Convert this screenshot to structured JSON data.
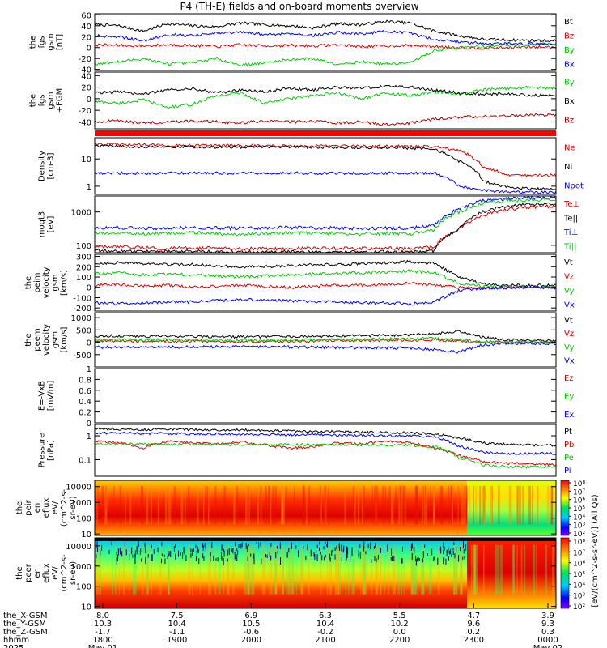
{
  "title": "P4 (TH-E) fields and on-board moments overview",
  "chart_data": [
    {
      "id": "fgs_gsm",
      "type": "line",
      "ylabel": [
        "the",
        "fgs",
        "gsm",
        "[nT]"
      ],
      "ylim": [
        -42,
        62
      ],
      "yticks": [
        60,
        40,
        20,
        0,
        -20,
        -40
      ],
      "series": [
        {
          "name": "Bt",
          "color": "#000000",
          "values": [
            42,
            40,
            30,
            44,
            40,
            38,
            45,
            42,
            40,
            36,
            44,
            42,
            48,
            45,
            30,
            22,
            15,
            14,
            13,
            12
          ]
        },
        {
          "name": "Bz",
          "color": "#dd0000",
          "values": [
            5,
            4,
            3,
            5,
            4,
            2,
            5,
            3,
            4,
            3,
            5,
            2,
            3,
            4,
            2,
            0,
            -1,
            0,
            1,
            1
          ]
        },
        {
          "name": "By",
          "color": "#00cc00",
          "values": [
            -30,
            -26,
            -20,
            -30,
            -28,
            -20,
            -32,
            -28,
            -22,
            -20,
            -30,
            -26,
            -30,
            -28,
            -5,
            0,
            2,
            5,
            6,
            7
          ]
        },
        {
          "name": "Bx",
          "color": "#0000ff",
          "values": [
            22,
            20,
            12,
            24,
            22,
            26,
            28,
            24,
            26,
            22,
            28,
            25,
            30,
            26,
            15,
            10,
            8,
            7,
            7,
            6
          ]
        }
      ]
    },
    {
      "id": "fgs_gsm_alt",
      "type": "line",
      "ylabel": [
        "the",
        "fgs",
        "gsm",
        "+FGM"
      ],
      "ylim": [
        -52,
        46
      ],
      "yticks": [
        40,
        20,
        0,
        -20,
        -40
      ],
      "series": [
        {
          "name": "By",
          "color": "#00cc00",
          "values": [
            -5,
            -8,
            -2,
            -15,
            -10,
            5,
            10,
            -8,
            0,
            5,
            10,
            0,
            10,
            5,
            12,
            8,
            15,
            18,
            20,
            18
          ]
        },
        {
          "name": "Bx",
          "color": "#000000",
          "values": [
            10,
            12,
            8,
            15,
            18,
            10,
            15,
            12,
            18,
            15,
            20,
            18,
            22,
            20,
            15,
            10,
            8,
            8,
            6,
            6
          ]
        },
        {
          "name": "Bz",
          "color": "#aa0000",
          "values": [
            -40,
            -38,
            -42,
            -40,
            -38,
            -40,
            -42,
            -38,
            -40,
            -39,
            -42,
            -40,
            -45,
            -42,
            -35,
            -32,
            -30,
            -30,
            -28,
            -28
          ]
        }
      ]
    },
    {
      "id": "density",
      "type": "line",
      "log": true,
      "ylabel": [
        "Density",
        "[cm-3]"
      ],
      "ylim": [
        0.5,
        60
      ],
      "yticks": [
        10,
        1
      ],
      "series": [
        {
          "name": "Ne",
          "color": "#dd0000",
          "values": [
            35,
            34,
            33,
            32,
            32,
            31,
            31,
            30,
            30,
            30,
            30,
            29,
            29,
            29,
            28,
            20,
            5,
            2.5,
            2.5,
            2.5
          ]
        },
        {
          "name": "Ni",
          "color": "#000000",
          "values": [
            30,
            29,
            28,
            28,
            28,
            27,
            27,
            27,
            27,
            26,
            26,
            26,
            26,
            25,
            22,
            8,
            1.5,
            0.9,
            0.8,
            0.8
          ]
        },
        {
          "name": "Npot",
          "color": "#0000ff",
          "values": [
            3,
            3,
            3,
            3,
            3,
            3,
            3,
            3,
            3,
            3,
            3,
            3,
            3,
            3,
            3,
            1,
            0.7,
            0.6,
            0.6,
            0.6
          ]
        }
      ]
    },
    {
      "id": "temperature",
      "type": "line",
      "log": true,
      "ylabel": [
        "moqt3",
        "[eV]"
      ],
      "ylim": [
        60,
        3000
      ],
      "yticks": [
        1000,
        100
      ],
      "series": [
        {
          "name": "Te⊥",
          "color": "#dd0000",
          "values": [
            90,
            88,
            85,
            80,
            85,
            82,
            80,
            78,
            80,
            82,
            80,
            80,
            82,
            80,
            90,
            300,
            800,
            1200,
            1400,
            1500
          ]
        },
        {
          "name": "Te||",
          "color": "#000000",
          "values": [
            70,
            68,
            66,
            65,
            66,
            64,
            62,
            62,
            64,
            63,
            62,
            62,
            64,
            62,
            70,
            300,
            1000,
            1500,
            1700,
            1800
          ]
        },
        {
          "name": "Ti⊥",
          "color": "#0000ff",
          "values": [
            330,
            340,
            320,
            330,
            340,
            330,
            320,
            330,
            340,
            330,
            330,
            320,
            330,
            320,
            400,
            1200,
            2200,
            2500,
            2600,
            2600
          ]
        },
        {
          "name": "Ti||",
          "color": "#00cc00",
          "values": [
            230,
            240,
            220,
            230,
            240,
            220,
            210,
            230,
            240,
            230,
            230,
            220,
            230,
            220,
            300,
            1000,
            1800,
            2200,
            2300,
            2400
          ]
        }
      ]
    },
    {
      "id": "peim_velocity",
      "type": "line",
      "ylabel": [
        "the",
        "peim",
        "velocity",
        "gsm",
        "[km/s]"
      ],
      "ylim": [
        -230,
        320
      ],
      "yticks": [
        300,
        200,
        100,
        0,
        -100,
        -200
      ],
      "series": [
        {
          "name": "Vt",
          "color": "#000000",
          "values": [
            230,
            240,
            230,
            220,
            220,
            210,
            200,
            200,
            210,
            220,
            220,
            230,
            240,
            250,
            230,
            100,
            30,
            20,
            20,
            20
          ]
        },
        {
          "name": "Vz",
          "color": "#dd0000",
          "values": [
            20,
            30,
            10,
            20,
            0,
            10,
            20,
            10,
            0,
            10,
            20,
            20,
            30,
            40,
            20,
            0,
            -10,
            0,
            0,
            0
          ]
        },
        {
          "name": "Vy",
          "color": "#00cc00",
          "values": [
            130,
            140,
            120,
            130,
            120,
            110,
            100,
            110,
            120,
            130,
            140,
            140,
            150,
            160,
            140,
            40,
            10,
            5,
            5,
            5
          ]
        },
        {
          "name": "Vx",
          "color": "#0000ff",
          "values": [
            -150,
            -160,
            -150,
            -140,
            -140,
            -130,
            -120,
            -120,
            -130,
            -140,
            -140,
            -150,
            -150,
            -160,
            -140,
            -30,
            -10,
            -5,
            -5,
            -5
          ]
        }
      ]
    },
    {
      "id": "peem_velocity",
      "type": "line",
      "ylabel": [
        "the",
        "peem",
        "velocity",
        "gsm",
        "[km/s]"
      ],
      "ylim": [
        -1000,
        1200
      ],
      "yticks": [
        1000,
        500,
        0,
        -500
      ],
      "series": [
        {
          "name": "Vt",
          "color": "#000000",
          "values": [
            250,
            260,
            240,
            250,
            240,
            230,
            220,
            230,
            240,
            250,
            260,
            270,
            280,
            300,
            350,
            450,
            200,
            100,
            80,
            70
          ]
        },
        {
          "name": "Vz",
          "color": "#dd0000",
          "values": [
            50,
            60,
            40,
            50,
            40,
            30,
            20,
            30,
            40,
            50,
            60,
            70,
            80,
            90,
            100,
            50,
            0,
            0,
            0,
            0
          ]
        },
        {
          "name": "Vy",
          "color": "#00cc00",
          "values": [
            100,
            110,
            90,
            100,
            90,
            80,
            70,
            80,
            90,
            100,
            110,
            120,
            130,
            140,
            150,
            100,
            20,
            10,
            10,
            10
          ]
        },
        {
          "name": "Vx",
          "color": "#0000ff",
          "values": [
            -200,
            -210,
            -190,
            -200,
            -190,
            -180,
            -170,
            -180,
            -190,
            -200,
            -210,
            -220,
            -230,
            -240,
            -300,
            -400,
            -100,
            -50,
            -50,
            -50
          ]
        }
      ]
    },
    {
      "id": "efield",
      "type": "line",
      "ylabel": [
        "E=-VxB",
        "[mV/m]"
      ],
      "ylim": [
        0,
        1.0
      ],
      "yticks": [
        1.0,
        0.8,
        0.6,
        0.4,
        0.2,
        0.0
      ],
      "series": [
        {
          "name": "Ez",
          "color": "#dd0000",
          "values": []
        },
        {
          "name": "Ey",
          "color": "#00cc00",
          "values": []
        },
        {
          "name": "Ex",
          "color": "#0000ff",
          "values": []
        }
      ]
    },
    {
      "id": "pressure",
      "type": "line",
      "log": true,
      "ylabel": [
        "Pressure",
        "[nPa]"
      ],
      "ylim": [
        0.02,
        3
      ],
      "yticks": [
        1.0,
        0.1
      ],
      "series": [
        {
          "name": "Pt",
          "color": "#000000",
          "values": [
            2.0,
            1.9,
            1.8,
            1.9,
            1.8,
            1.7,
            1.8,
            1.7,
            1.6,
            1.5,
            1.5,
            1.4,
            1.4,
            1.3,
            1.2,
            0.8,
            0.5,
            0.45,
            0.4,
            0.4
          ]
        },
        {
          "name": "Pb",
          "color": "#dd0000",
          "values": [
            0.6,
            0.5,
            0.3,
            0.6,
            0.5,
            0.45,
            0.55,
            0.4,
            0.3,
            0.35,
            0.5,
            0.45,
            0.6,
            0.5,
            0.3,
            0.15,
            0.08,
            0.07,
            0.07,
            0.06
          ]
        },
        {
          "name": "Pe",
          "color": "#00cc00",
          "values": [
            0.45,
            0.45,
            0.45,
            0.44,
            0.44,
            0.43,
            0.43,
            0.43,
            0.42,
            0.42,
            0.42,
            0.41,
            0.41,
            0.4,
            0.35,
            0.12,
            0.06,
            0.05,
            0.05,
            0.05
          ]
        },
        {
          "name": "Pi",
          "color": "#0000ff",
          "values": [
            1.3,
            1.3,
            1.25,
            1.25,
            1.2,
            1.2,
            1.15,
            1.15,
            1.1,
            1.1,
            1.05,
            1.05,
            1.0,
            1.0,
            0.9,
            0.35,
            0.2,
            0.18,
            0.18,
            0.18
          ]
        }
      ]
    },
    {
      "id": "peir_eflux",
      "type": "heatmap",
      "log": true,
      "ylabel": [
        "the",
        "peir",
        "en",
        "eflux",
        "eV/",
        "(cm^2-s-",
        "sr-eV)"
      ],
      "ylim": [
        8,
        25000
      ],
      "yticks": [
        10000,
        1000,
        100,
        10
      ]
    },
    {
      "id": "peer_eflux",
      "type": "heatmap",
      "log": true,
      "ylabel": [
        "the",
        "peer",
        "en",
        "eflux",
        "eV/",
        "(cm^2-s-",
        "sr-eV)"
      ],
      "ylim": [
        8,
        25000
      ],
      "yticks": [
        10000,
        1000,
        100,
        10
      ]
    }
  ],
  "colorbar": {
    "label": "[eV/(cm^2-s-sr-eV)] (All Qs)",
    "top_ticks": [
      "10⁸",
      "10⁷",
      "10⁶",
      "10⁵",
      "10⁴",
      "10³",
      "10²"
    ],
    "bottom_ticks": [
      "10⁸",
      "10⁷",
      "10⁶",
      "10⁵",
      "10⁴",
      "10³",
      "10²"
    ]
  },
  "time_axis": {
    "rows": [
      {
        "label": "the_X-GSM",
        "values": [
          "8.0",
          "7.5",
          "6.9",
          "6.3",
          "5.5",
          "4.7",
          "3.9"
        ]
      },
      {
        "label": "the_Y-GSM",
        "values": [
          "10.3",
          "10.4",
          "10.5",
          "10.4",
          "10.2",
          "9.6",
          "9.3"
        ]
      },
      {
        "label": "the_Z-GSM",
        "values": [
          "-1.7",
          "-1.1",
          "-0.6",
          "-0.2",
          "0.0",
          "0.2",
          "0.3"
        ]
      },
      {
        "label": "hhmm",
        "values": [
          "1800",
          "1900",
          "2000",
          "2100",
          "2200",
          "2300",
          "0000"
        ]
      },
      {
        "label": "2025",
        "values": [
          "May 01",
          "",
          "",
          "",
          "",
          "",
          "May 02"
        ]
      }
    ]
  }
}
